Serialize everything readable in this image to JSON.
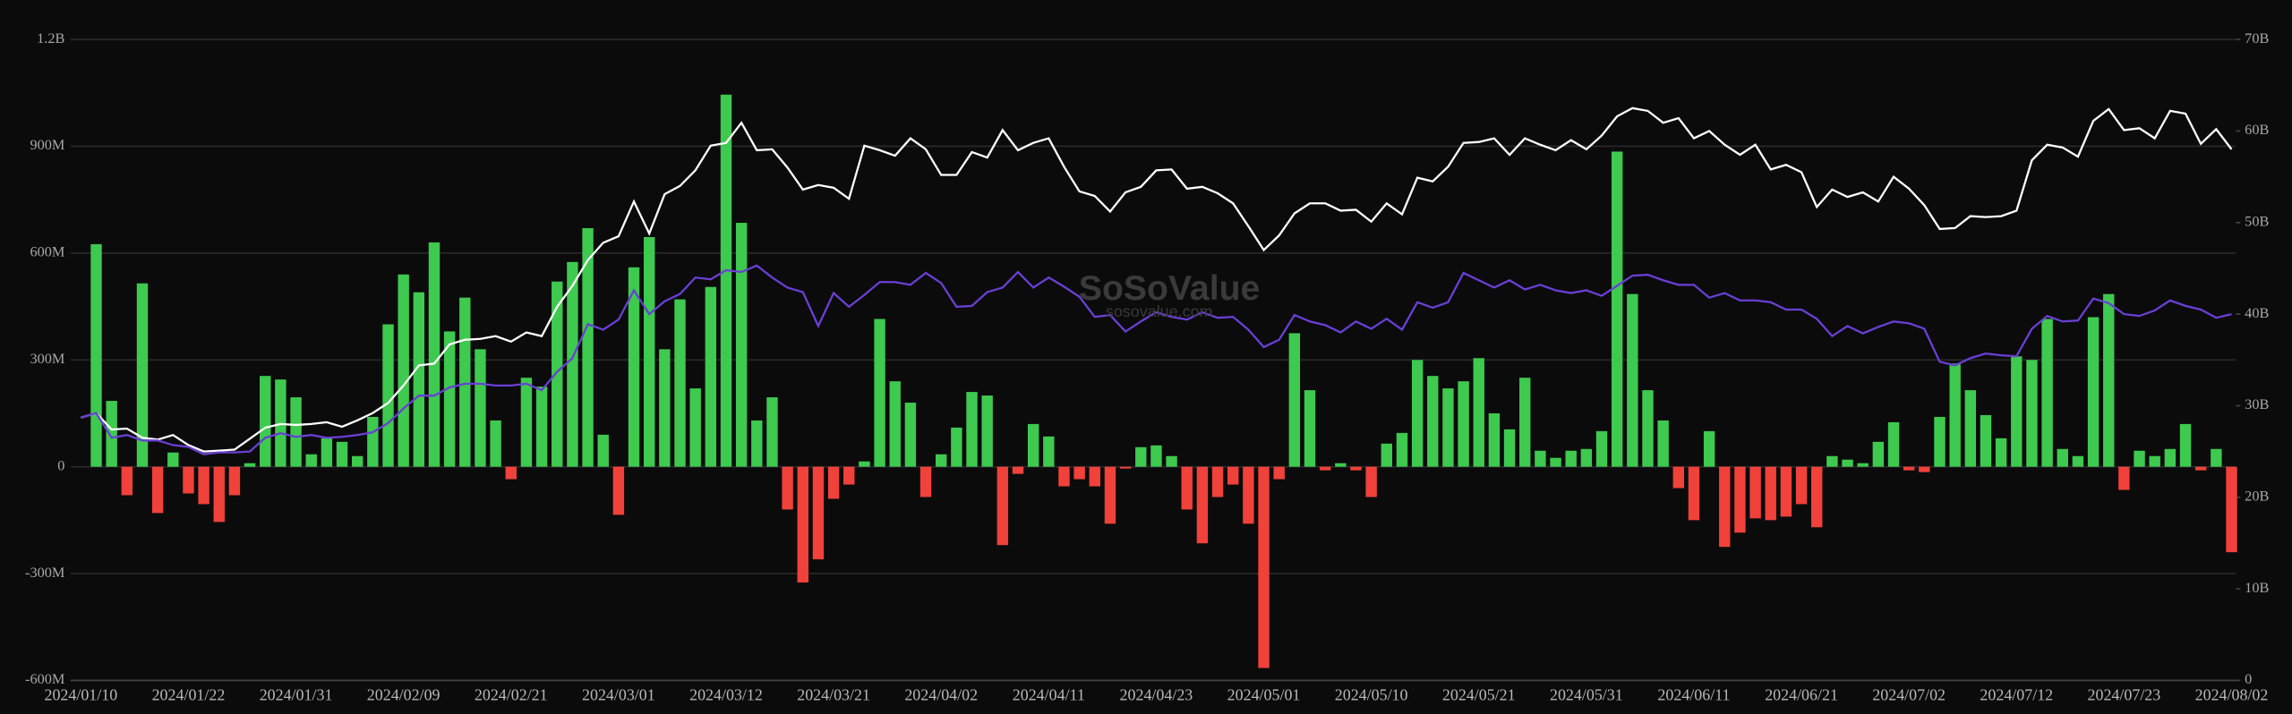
{
  "chart_data": {
    "type": "bar",
    "watermark": {
      "title": "SoSoValue",
      "subtitle": "sosovalue.com"
    },
    "categories": [
      "2024/01/10",
      null,
      null,
      null,
      null,
      null,
      null,
      "2024/01/22",
      null,
      null,
      null,
      null,
      null,
      null,
      "2024/01/31",
      null,
      null,
      null,
      null,
      null,
      null,
      "2024/02/09",
      null,
      null,
      null,
      null,
      null,
      null,
      "2024/02/21",
      null,
      null,
      null,
      null,
      null,
      null,
      "2024/03/01",
      null,
      null,
      null,
      null,
      null,
      null,
      "2024/03/12",
      null,
      null,
      null,
      null,
      null,
      null,
      "2024/03/21",
      null,
      null,
      null,
      null,
      null,
      null,
      "2024/04/02",
      null,
      null,
      null,
      null,
      null,
      null,
      "2024/04/11",
      null,
      null,
      null,
      null,
      null,
      null,
      "2024/04/23",
      null,
      null,
      null,
      null,
      null,
      null,
      "2024/05/01",
      null,
      null,
      null,
      null,
      null,
      null,
      "2024/05/10",
      null,
      null,
      null,
      null,
      null,
      null,
      "2024/05/21",
      null,
      null,
      null,
      null,
      null,
      null,
      "2024/05/31",
      null,
      null,
      null,
      null,
      null,
      null,
      "2024/06/11",
      null,
      null,
      null,
      null,
      null,
      null,
      "2024/06/21",
      null,
      null,
      null,
      null,
      null,
      null,
      "2024/07/02",
      null,
      null,
      null,
      null,
      null,
      null,
      "2024/07/12",
      null,
      null,
      null,
      null,
      null,
      null,
      "2024/07/23",
      null,
      null,
      null,
      null,
      null,
      null,
      "2024/08/02"
    ],
    "ylim": [
      -600,
      1200
    ],
    "yticks": [
      {
        "value": -600,
        "label": "-600M"
      },
      {
        "value": -300,
        "label": "-300M"
      },
      0,
      {
        "value": 300,
        "label": "300M"
      },
      {
        "value": 600,
        "label": "600M"
      },
      {
        "value": 900,
        "label": "900M"
      },
      {
        "value": 1200,
        "label": "1.2B"
      }
    ],
    "y2lim": [
      0,
      70
    ],
    "y2ticks": [
      0,
      {
        "value": 10,
        "label": "10B"
      },
      {
        "value": 20,
        "label": "20B"
      },
      {
        "value": 30,
        "label": "30B"
      },
      {
        "value": 40,
        "label": "40B"
      },
      {
        "value": 50,
        "label": "50B"
      },
      {
        "value": 60,
        "label": "60B"
      },
      {
        "value": 70,
        "label": "70B"
      }
    ],
    "grid": true,
    "series": [
      {
        "type": "bar",
        "color": "#3ec94f",
        "negative_color": "#f0413a",
        "values": [
          null,
          625,
          185,
          -80,
          515,
          -130,
          40,
          -75,
          -105,
          -155,
          -80,
          10,
          255,
          245,
          195,
          35,
          80,
          70,
          30,
          140,
          400,
          540,
          490,
          630,
          380,
          475,
          330,
          130,
          -35,
          250,
          225,
          520,
          575,
          670,
          90,
          -135,
          560,
          645,
          330,
          470,
          220,
          505,
          1045,
          685,
          130,
          195,
          -120,
          -325,
          -260,
          -90,
          -50,
          15,
          415,
          240,
          180,
          -85,
          35,
          110,
          210,
          200,
          -220,
          -20,
          120,
          85,
          -55,
          -35,
          -55,
          -160,
          -5,
          55,
          60,
          30,
          -120,
          -215,
          -85,
          -50,
          -160,
          -565,
          -35,
          375,
          215,
          -10,
          10,
          -10,
          -85,
          65,
          95,
          300,
          255,
          220,
          240,
          305,
          150,
          105,
          250,
          45,
          25,
          45,
          50,
          100,
          885,
          485,
          215,
          130,
          -60,
          -150,
          100,
          -225,
          -185,
          -145,
          -150,
          -140,
          -105,
          -170,
          30,
          20,
          10,
          70,
          125,
          -10,
          -15,
          140,
          290,
          215,
          145,
          80,
          310,
          300,
          415,
          50,
          30,
          420,
          485,
          -65,
          45,
          30,
          50,
          120,
          -10,
          50,
          -240
        ]
      },
      {
        "type": "line",
        "axis": "y2",
        "color": "#ffffff",
        "values": [
          28.7,
          29.2,
          27.4,
          27.5,
          26.5,
          26.3,
          26.8,
          25.7,
          25.0,
          25.1,
          25.2,
          26.4,
          27.6,
          28.0,
          27.9,
          28.0,
          28.2,
          27.7,
          28.4,
          29.2,
          30.3,
          32.2,
          34.4,
          34.6,
          36.7,
          37.2,
          37.3,
          37.6,
          37.0,
          38.0,
          37.6,
          40.8,
          43.1,
          45.9,
          47.8,
          48.5,
          52.3,
          48.8,
          53.1,
          54.0,
          55.7,
          58.4,
          58.7,
          60.9,
          57.9,
          58.0,
          56.0,
          53.6,
          54.1,
          53.8,
          52.6,
          58.4,
          57.9,
          57.3,
          59.2,
          58.0,
          55.2,
          55.2,
          57.7,
          57.1,
          60.1,
          57.9,
          58.7,
          59.2,
          56.1,
          53.4,
          52.9,
          51.2,
          53.3,
          53.9,
          55.7,
          55.8,
          53.7,
          53.9,
          53.2,
          52.1,
          49.6,
          47.0,
          48.6,
          51.0,
          52.1,
          52.1,
          51.3,
          51.4,
          50.1,
          52.1,
          50.9,
          54.9,
          54.5,
          56.1,
          58.7,
          58.8,
          59.2,
          57.4,
          59.2,
          58.5,
          57.9,
          59.0,
          58.0,
          59.5,
          61.6,
          62.5,
          62.2,
          60.9,
          61.4,
          59.2,
          60.0,
          58.5,
          57.4,
          58.5,
          55.8,
          56.3,
          55.5,
          51.7,
          53.6,
          52.8,
          53.3,
          52.3,
          55.0,
          53.7,
          51.9,
          49.3,
          49.4,
          50.7,
          50.6,
          50.7,
          51.3,
          56.8,
          58.5,
          58.2,
          57.2,
          61.1,
          62.4,
          60.1,
          60.3,
          59.2,
          62.2,
          61.9,
          58.6,
          60.2,
          58.0
        ]
      },
      {
        "type": "line",
        "axis": "y2",
        "color": "#6a3fd6",
        "values": [
          28.7,
          29.2,
          26.5,
          26.8,
          26.2,
          26.2,
          25.7,
          25.5,
          24.7,
          24.9,
          24.9,
          25.0,
          26.5,
          27.0,
          26.6,
          26.8,
          26.5,
          26.6,
          26.8,
          27.1,
          28.1,
          29.7,
          31.1,
          31.1,
          32.0,
          32.4,
          32.4,
          32.2,
          32.2,
          32.4,
          31.7,
          33.7,
          35.2,
          38.9,
          38.3,
          39.4,
          42.6,
          40.0,
          41.4,
          42.2,
          44.0,
          43.8,
          44.8,
          44.6,
          45.3,
          44.0,
          42.9,
          42.4,
          38.7,
          42.3,
          40.8,
          42.1,
          43.5,
          43.5,
          43.2,
          44.5,
          43.4,
          40.8,
          40.9,
          42.4,
          42.9,
          44.6,
          42.9,
          44.0,
          43.0,
          41.9,
          39.7,
          39.9,
          38.1,
          39.2,
          40.2,
          39.7,
          39.4,
          40.2,
          39.6,
          39.7,
          38.3,
          36.4,
          37.2,
          39.9,
          39.2,
          38.8,
          38.0,
          39.2,
          38.4,
          39.5,
          38.3,
          41.3,
          40.7,
          41.3,
          44.5,
          43.7,
          42.9,
          43.7,
          42.7,
          43.2,
          42.6,
          42.3,
          42.6,
          42.0,
          43.1,
          44.2,
          44.3,
          43.7,
          43.2,
          43.2,
          41.8,
          42.3,
          41.5,
          41.5,
          41.3,
          40.5,
          40.5,
          39.5,
          37.6,
          38.7,
          37.9,
          38.6,
          39.2,
          39.0,
          38.4,
          34.8,
          34.4,
          35.2,
          35.7,
          35.5,
          35.4,
          38.4,
          39.8,
          39.2,
          39.3,
          41.7,
          41.2,
          40.0,
          39.8,
          40.4,
          41.5,
          40.9,
          40.5,
          39.6,
          40.0
        ]
      }
    ]
  }
}
